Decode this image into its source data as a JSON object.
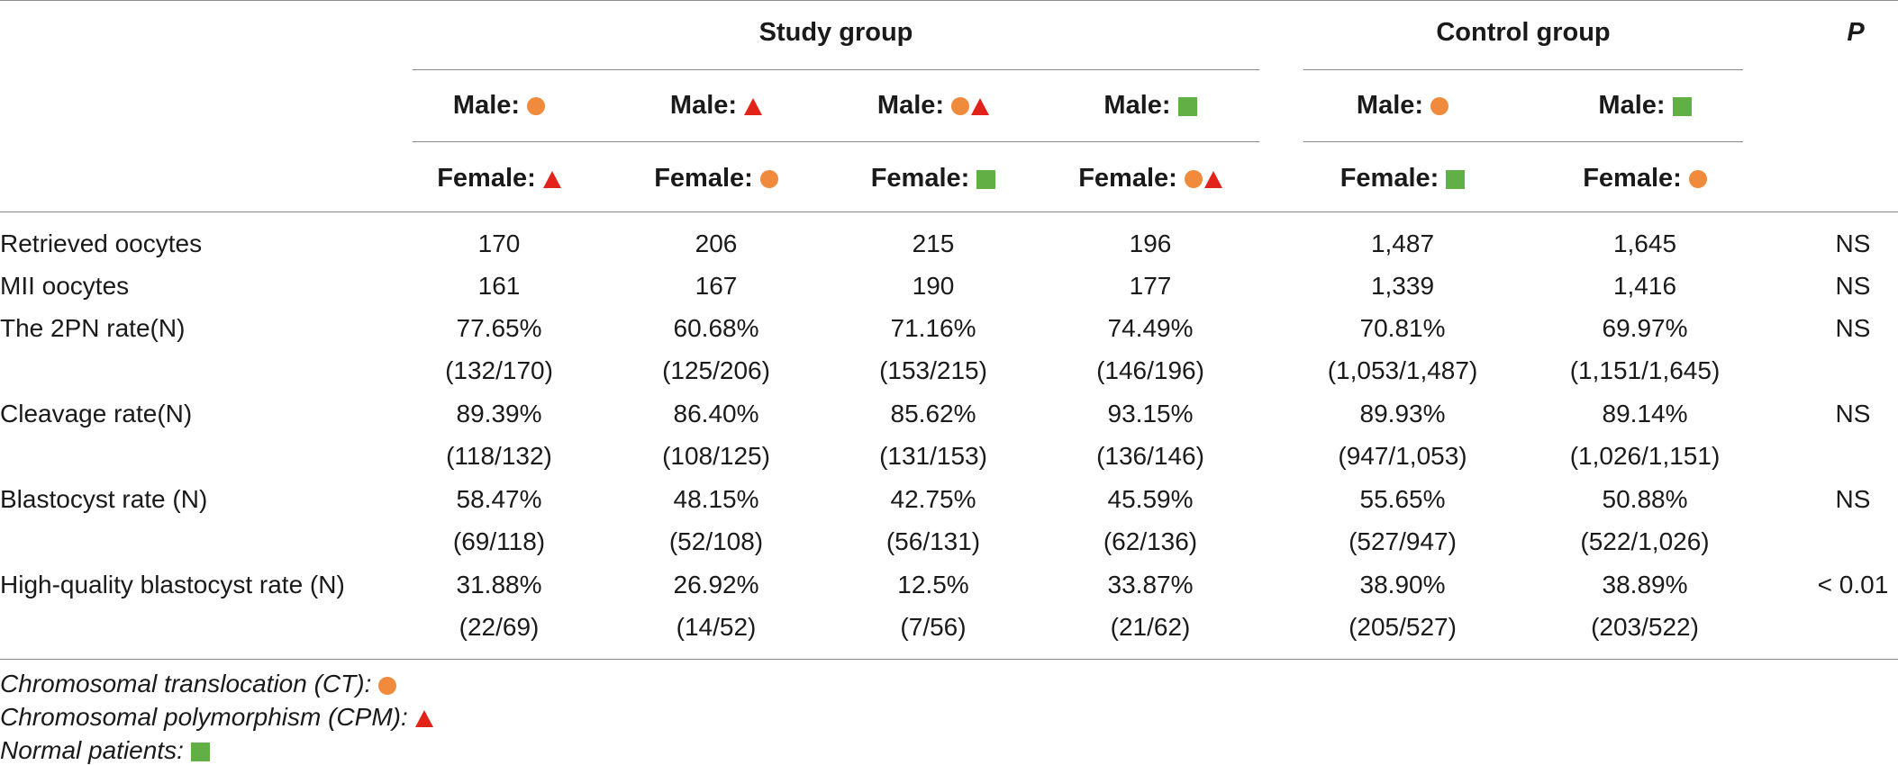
{
  "header": {
    "study_group": "Study group",
    "control_group": "Control group",
    "p": "P",
    "male_prefix": "Male:",
    "female_prefix": "Female:"
  },
  "columns": [
    {
      "male": [
        "circle"
      ],
      "female": [
        "triangle"
      ]
    },
    {
      "male": [
        "triangle"
      ],
      "female": [
        "circle"
      ]
    },
    {
      "male": [
        "circle",
        "triangle"
      ],
      "female": [
        "square"
      ]
    },
    {
      "male": [
        "square"
      ],
      "female": [
        "circle",
        "triangle"
      ]
    },
    {
      "male": [
        "circle"
      ],
      "female": [
        "square"
      ]
    },
    {
      "male": [
        "square"
      ],
      "female": [
        "circle"
      ]
    }
  ],
  "rows": [
    {
      "label": "Retrieved oocytes",
      "values": [
        "170",
        "206",
        "215",
        "196",
        "1,487",
        "1,645"
      ],
      "sub": null,
      "p": "NS"
    },
    {
      "label": "MII oocytes",
      "values": [
        "161",
        "167",
        "190",
        "177",
        "1,339",
        "1,416"
      ],
      "sub": null,
      "p": "NS"
    },
    {
      "label": "The 2PN rate(N)",
      "values": [
        "77.65%",
        "60.68%",
        "71.16%",
        "74.49%",
        "70.81%",
        "69.97%"
      ],
      "sub": [
        "(132/170)",
        "(125/206)",
        "(153/215)",
        "(146/196)",
        "(1,053/1,487)",
        "(1,151/1,645)"
      ],
      "p": "NS"
    },
    {
      "label": "Cleavage rate(N)",
      "values": [
        "89.39%",
        "86.40%",
        "85.62%",
        "93.15%",
        "89.93%",
        "89.14%"
      ],
      "sub": [
        "(118/132)",
        "(108/125)",
        "(131/153)",
        "(136/146)",
        "(947/1,053)",
        "(1,026/1,151)"
      ],
      "p": "NS"
    },
    {
      "label": "Blastocyst rate (N)",
      "values": [
        "58.47%",
        "48.15%",
        "42.75%",
        "45.59%",
        "55.65%",
        "50.88%"
      ],
      "sub": [
        "(69/118)",
        "(52/108)",
        "(56/131)",
        "(62/136)",
        "(527/947)",
        "(522/1,026)"
      ],
      "p": "NS"
    },
    {
      "label": "High-quality blastocyst rate (N)",
      "values": [
        "31.88%",
        "26.92%",
        "12.5%",
        "33.87%",
        "38.90%",
        "38.89%"
      ],
      "sub": [
        "(22/69)",
        "(14/52)",
        "(7/56)",
        "(21/62)",
        "(205/527)",
        "(203/522)"
      ],
      "p": "< 0.01"
    }
  ],
  "footnotes": [
    {
      "text": "Chromosomal translocation (CT):",
      "symbol": "circle"
    },
    {
      "text": "Chromosomal polymorphism (CPM):",
      "symbol": "triangle"
    },
    {
      "text": "Normal patients:",
      "symbol": "square"
    }
  ],
  "colors": {
    "circle": "#f08a3c",
    "triangle": "#e2231a",
    "square": "#62b045"
  }
}
